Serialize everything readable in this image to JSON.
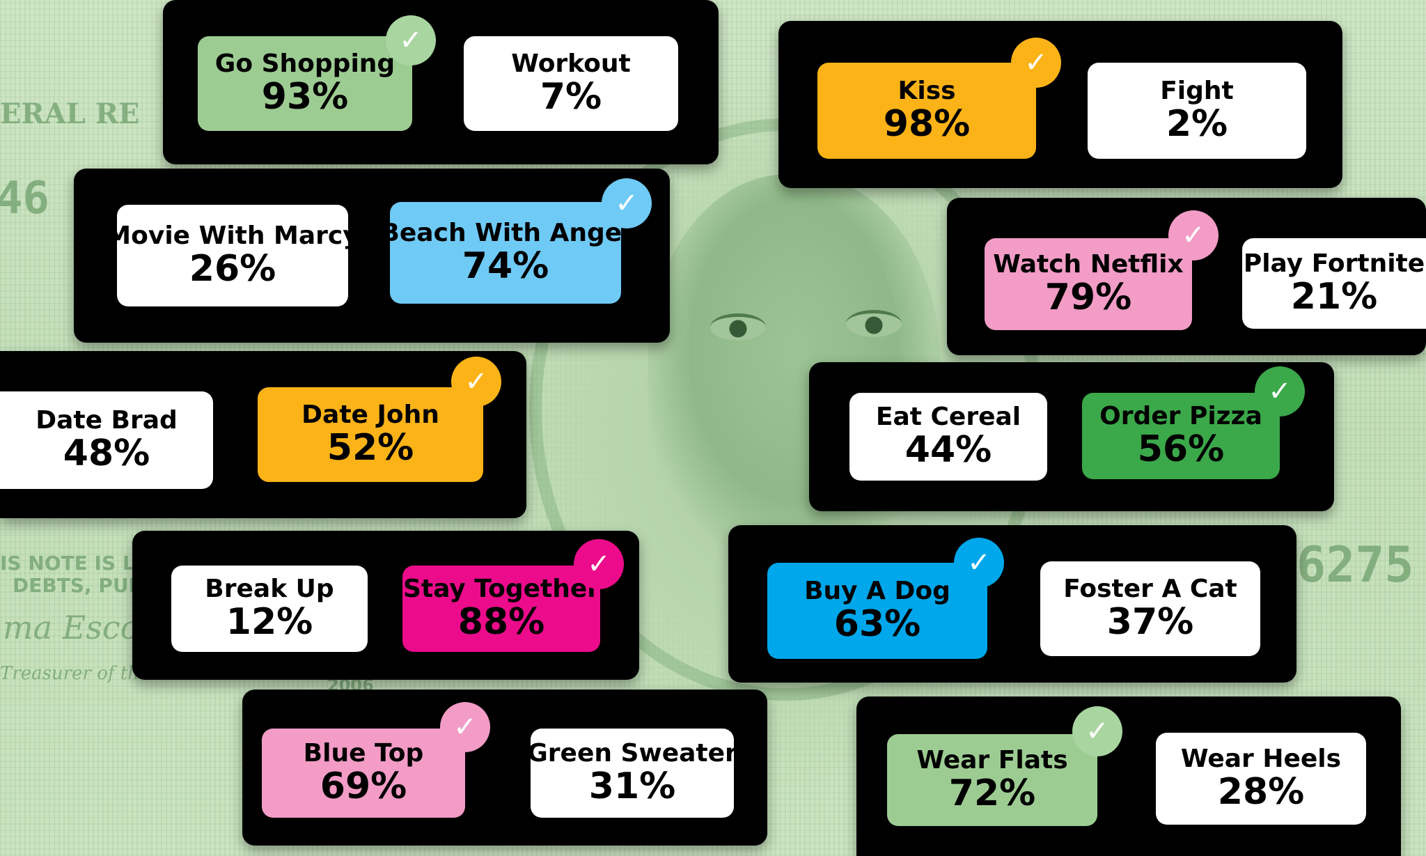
{
  "colors": {
    "white": "#ffffff",
    "sage": "#9dcc93",
    "sage_check": "#a9d6a0",
    "amber": "#fbb318",
    "sky": "#6fcaf6",
    "sky_check": "#6fcaf6",
    "pink": "#f29cc6",
    "magenta": "#ec0c8b",
    "green": "#3ba84a",
    "blue": "#00a7ea"
  },
  "bill": {
    "top_left_text": "ERAL RE",
    "left_number": "46",
    "note_line1": "IS NOTE IS LE",
    "note_line2": "DEBTS, PUE",
    "signature": "ma Escobe",
    "treasurer": "Treasurer of the U",
    "series_year": "2006",
    "right_number": "6275"
  },
  "polls": [
    {
      "a": {
        "label": "Go Shopping",
        "pct": "93%"
      },
      "b": {
        "label": "Workout",
        "pct": "7%"
      }
    },
    {
      "a": {
        "label": "Kiss",
        "pct": "98%"
      },
      "b": {
        "label": "Fight",
        "pct": "2%"
      }
    },
    {
      "a": {
        "label": "Movie With Marcy",
        "pct": "26%"
      },
      "b": {
        "label": "Beach With Angel",
        "pct": "74%"
      }
    },
    {
      "a": {
        "label": "Watch Netflix",
        "pct": "79%"
      },
      "b": {
        "label": "Play Fortnite",
        "pct": "21%"
      }
    },
    {
      "a": {
        "label": "Date Brad",
        "pct": "48%"
      },
      "b": {
        "label": "Date John",
        "pct": "52%"
      }
    },
    {
      "a": {
        "label": "Eat Cereal",
        "pct": "44%"
      },
      "b": {
        "label": "Order Pizza",
        "pct": "56%"
      }
    },
    {
      "a": {
        "label": "Break Up",
        "pct": "12%"
      },
      "b": {
        "label": "Stay Together",
        "pct": "88%"
      }
    },
    {
      "a": {
        "label": "Buy A Dog",
        "pct": "63%"
      },
      "b": {
        "label": "Foster A Cat",
        "pct": "37%"
      }
    },
    {
      "a": {
        "label": "Blue Top",
        "pct": "69%"
      },
      "b": {
        "label": "Green Sweater",
        "pct": "31%"
      }
    },
    {
      "a": {
        "label": "Wear Flats",
        "pct": "72%"
      },
      "b": {
        "label": "Wear Heels",
        "pct": "28%"
      }
    }
  ],
  "check_icon": "check-mark-icon"
}
